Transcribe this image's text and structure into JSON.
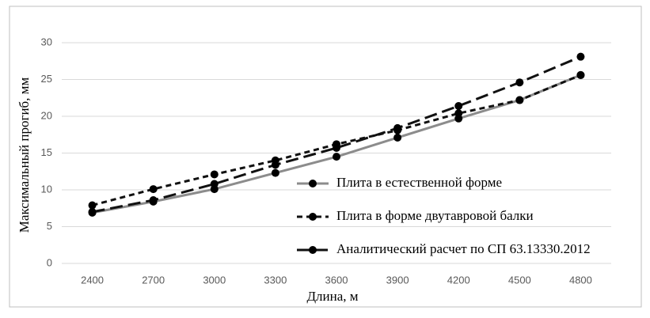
{
  "chart_data": {
    "type": "line",
    "x_label": "Длина, м",
    "y_label": "Максимальный прогиб, мм",
    "categories": [
      "2400",
      "2700",
      "3000",
      "3300",
      "3600",
      "3900",
      "4200",
      "4500",
      "4800"
    ],
    "series": [
      {
        "name": "Плита в естественной форме",
        "color": "#8c8c8c",
        "dash": "none",
        "values": [
          6.9,
          8.4,
          10.1,
          12.3,
          14.5,
          17.1,
          19.7,
          22.2,
          25.6
        ]
      },
      {
        "name": "Плита в форме двутавровой балки",
        "color": "#111111",
        "dash": "7,5",
        "values": [
          7.9,
          10.1,
          12.1,
          14.0,
          16.2,
          18.1,
          20.4,
          22.2,
          25.6
        ]
      },
      {
        "name": "Аналитический расчет по СП 63.13330.2012",
        "color": "#111111",
        "dash": "16,7",
        "values": [
          7.0,
          8.6,
          10.8,
          13.4,
          15.7,
          18.4,
          21.4,
          24.6,
          28.1
        ]
      }
    ],
    "marker_color": "#000000",
    "ylim": [
      0,
      30
    ],
    "yticks": [
      0,
      5,
      10,
      15,
      20,
      25,
      30
    ],
    "grid": true,
    "legend": "lower-right"
  }
}
